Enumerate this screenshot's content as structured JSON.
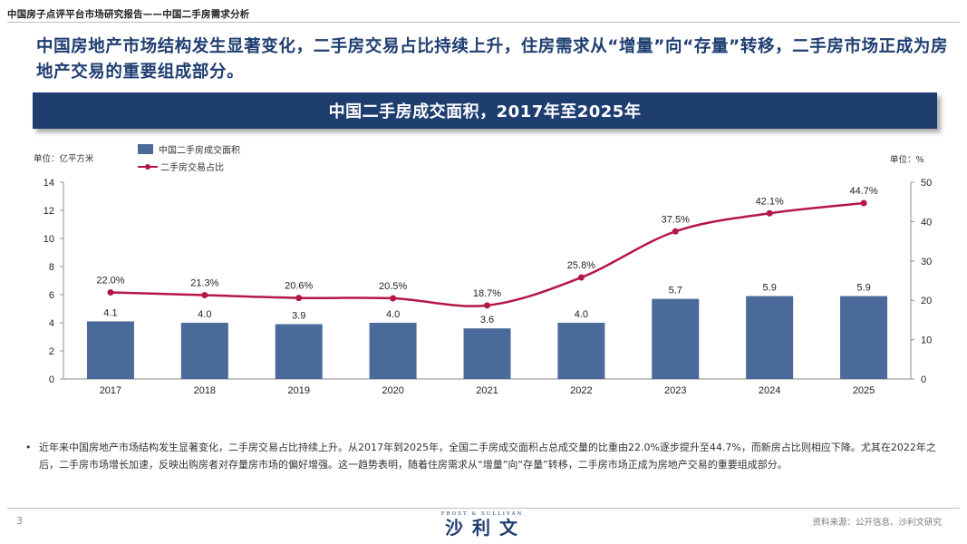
{
  "header": {
    "title": "中国房子点评平台市场研究报告——中国二手房需求分析"
  },
  "headline": "中国房地产市场结构发生显著变化，二手房交易占比持续上升，住房需求从“增量”向“存量”转移，二手房市场正成为房地产交易的重要组成部分。",
  "units": {
    "left": "单位：亿平方米",
    "right": "单位：%"
  },
  "chart_data": {
    "type": "bar",
    "title": "中国二手房成交面积，2017年至2025年",
    "categories": [
      "2017",
      "2018",
      "2019",
      "2020",
      "2021",
      "2022",
      "2023",
      "2024",
      "2025"
    ],
    "series": [
      {
        "name": "中国二手房成交面积",
        "type": "bar",
        "axis": "left",
        "values": [
          4.1,
          4.0,
          3.9,
          4.0,
          3.6,
          4.0,
          5.7,
          5.9,
          5.9
        ],
        "labels": [
          "4.1",
          "4.0",
          "3.9",
          "4.0",
          "3.6",
          "4.0",
          "5.7",
          "5.9",
          "5.9"
        ],
        "color": "#4a6a99"
      },
      {
        "name": "二手房交易占比",
        "type": "line",
        "axis": "right",
        "values": [
          22.0,
          21.3,
          20.6,
          20.5,
          18.7,
          25.8,
          37.5,
          42.1,
          44.7
        ],
        "labels": [
          "22.0%",
          "21.3%",
          "20.6%",
          "20.5%",
          "18.7%",
          "25.8%",
          "37.5%",
          "42.1%",
          "44.7%"
        ],
        "color": "#b51745"
      }
    ],
    "y_left": {
      "min": 0,
      "max": 14,
      "ticks": [
        "0",
        "2",
        "4",
        "6",
        "8",
        "10",
        "12",
        "14"
      ]
    },
    "y_right": {
      "min": 0,
      "max": 50,
      "ticks": [
        "0",
        "10",
        "20",
        "30",
        "40",
        "50"
      ]
    },
    "grid": false,
    "legend": "top-left"
  },
  "bullet": {
    "symbol": "•",
    "text": "近年来中国房地产市场结构发生显著变化，二手房交易占比持续上升。从2017年到2025年，全国二手房成交面积占总成交量的比重由22.0%逐步提升至44.7%，而新房占比则相应下降。尤其在2022年之后，二手房市场增长加速，反映出购房者对存量房市场的偏好增强。这一趋势表明，随着住房需求从“增量”向“存量”转移，二手房市场正成为房地产交易的重要组成部分。"
  },
  "footer": {
    "page": "3",
    "logo_small": "FROST & SULLIVAN",
    "logo_big": "沙利文",
    "source": "资料来源：公开信息、沙利文研究"
  }
}
